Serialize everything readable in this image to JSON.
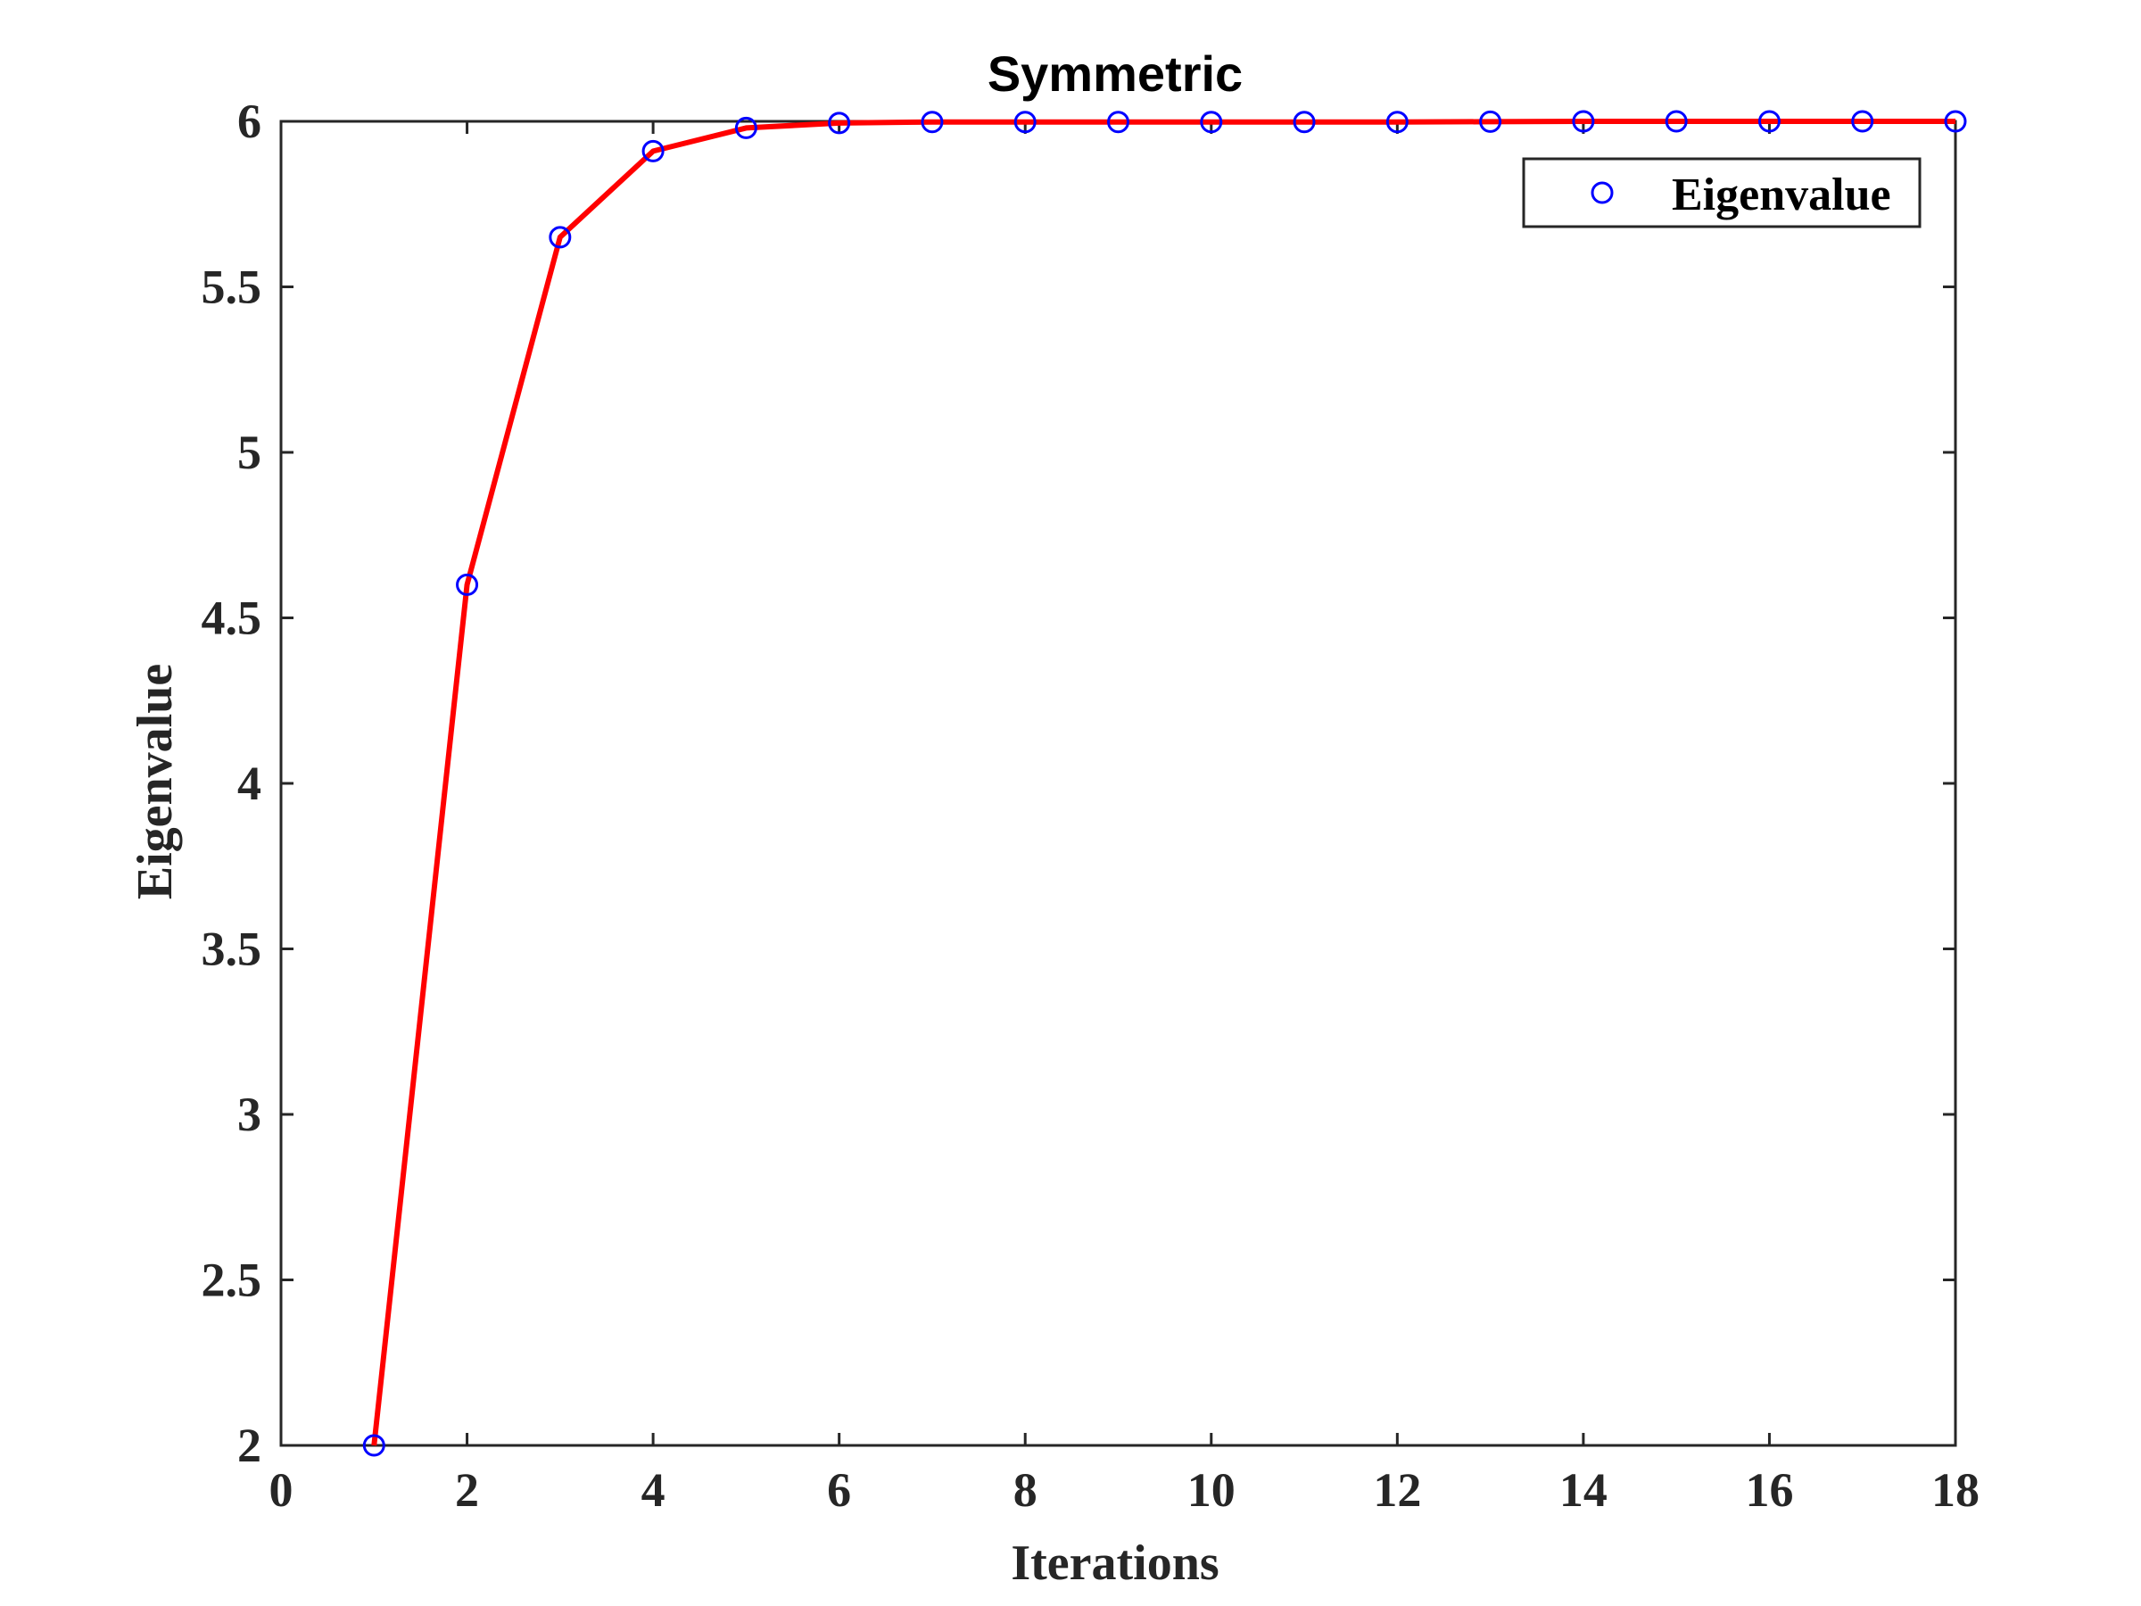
{
  "chart_data": {
    "type": "line",
    "title": "Symmetric",
    "xlabel": "Iterations",
    "ylabel": "Eigenvalue",
    "xlim": [
      0,
      18
    ],
    "ylim": [
      2,
      6
    ],
    "xticks": [
      0,
      2,
      4,
      6,
      8,
      10,
      12,
      14,
      16,
      18
    ],
    "yticks": [
      2,
      2.5,
      3,
      3.5,
      4,
      4.5,
      5,
      5.5,
      6
    ],
    "xtick_labels": [
      "0",
      "2",
      "4",
      "6",
      "8",
      "10",
      "12",
      "14",
      "16",
      "18"
    ],
    "ytick_labels": [
      "2",
      "2.5",
      "3",
      "3.5",
      "4",
      "4.5",
      "5",
      "5.5",
      "6"
    ],
    "grid": false,
    "legend": {
      "position": "top-right",
      "entries": [
        "Eigenvalue"
      ]
    },
    "series": [
      {
        "name": "Eigenvalue",
        "marker": "circle",
        "marker_color": "#0000ff",
        "line_color": "#ff0000",
        "x": [
          1,
          2,
          3,
          4,
          5,
          6,
          7,
          8,
          9,
          10,
          11,
          12,
          13,
          14,
          15,
          16,
          17,
          18
        ],
        "y": [
          2.0,
          4.6,
          5.65,
          5.91,
          5.98,
          5.995,
          5.998,
          5.998,
          5.998,
          5.998,
          5.998,
          5.998,
          5.999,
          6.0,
          6.0,
          6.0,
          6.0,
          6.0
        ]
      }
    ]
  }
}
